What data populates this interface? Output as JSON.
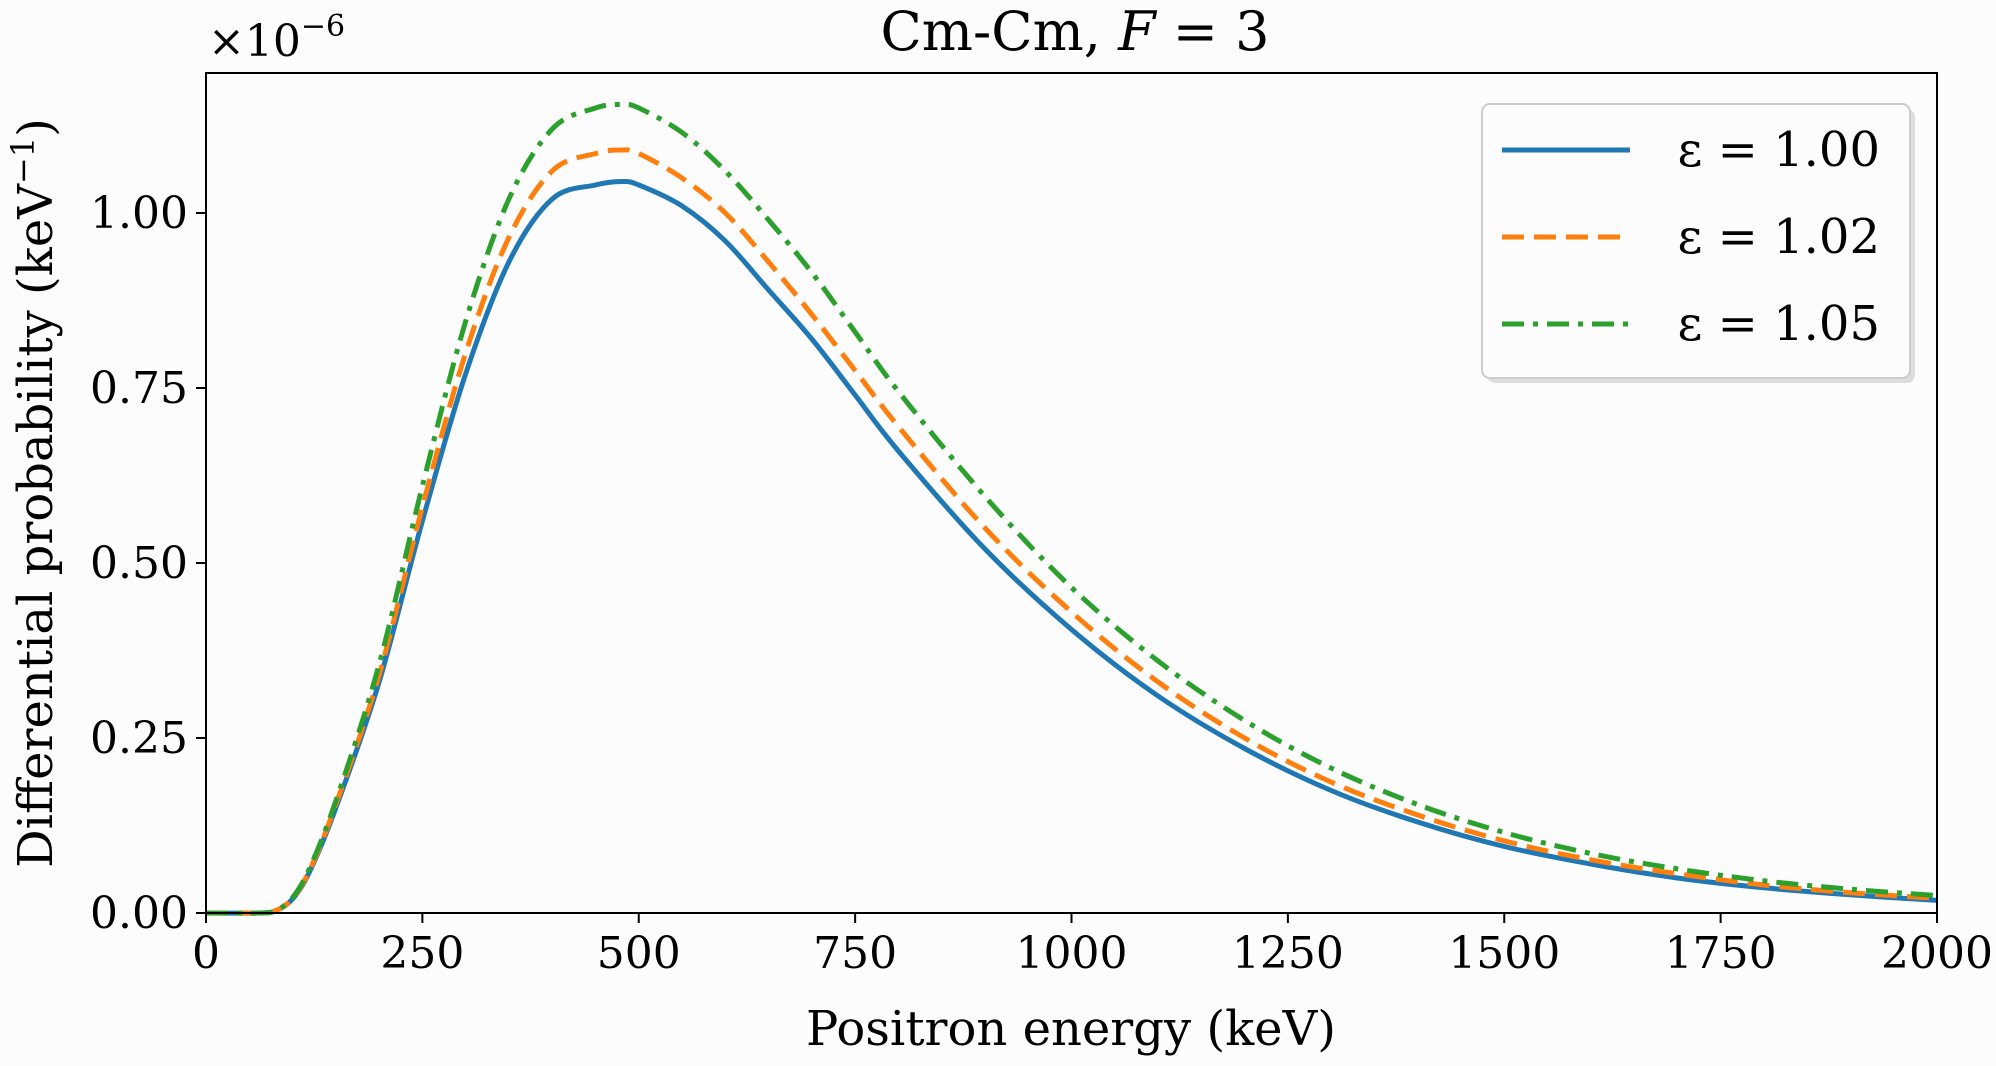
{
  "chart_data": {
    "type": "line",
    "title": "Cm-Cm, F = 3",
    "title_parts": {
      "prefix": "Cm-Cm, ",
      "var": "F",
      "suffix": " = 3"
    },
    "xlabel": "Positron energy (keV)",
    "ylabel": "Differential probability (keV",
    "ylabel_sup": "−1",
    "ylabel_close": ")",
    "y_offset_text": "×10",
    "y_offset_exp": "−6",
    "xlim": [
      0,
      2000
    ],
    "ylim": [
      0,
      1.2
    ],
    "y_scale_factor": 1e-06,
    "xticks": [
      0,
      250,
      500,
      750,
      1000,
      1250,
      1500,
      1750,
      2000
    ],
    "xtick_labels": [
      "0",
      "250",
      "500",
      "750",
      "1000",
      "1250",
      "1500",
      "1750",
      "2000"
    ],
    "yticks": [
      0,
      0.25,
      0.5,
      0.75,
      1.0
    ],
    "ytick_labels": [
      "0.00",
      "0.25",
      "0.50",
      "0.75",
      "1.00"
    ],
    "grid": false,
    "legend_position": "top-right",
    "x": [
      0,
      60,
      80,
      100,
      120,
      150,
      200,
      250,
      300,
      350,
      400,
      450,
      480,
      500,
      550,
      600,
      650,
      700,
      750,
      800,
      900,
      1000,
      1100,
      1200,
      1300,
      1400,
      1500,
      1600,
      1700,
      1800,
      1900,
      2000
    ],
    "series": [
      {
        "name": "ε = 1.00",
        "color": "#1f77b4",
        "style": "solid",
        "values": [
          0,
          0,
          0.003,
          0.02,
          0.06,
          0.15,
          0.33,
          0.56,
          0.77,
          0.93,
          1.02,
          1.04,
          1.045,
          1.04,
          1.01,
          0.96,
          0.89,
          0.82,
          0.74,
          0.66,
          0.52,
          0.405,
          0.31,
          0.235,
          0.175,
          0.13,
          0.095,
          0.07,
          0.05,
          0.036,
          0.026,
          0.018
        ]
      },
      {
        "name": "ε = 1.02",
        "color": "#ff7f0e",
        "style": "dashed",
        "values": [
          0,
          0,
          0.003,
          0.021,
          0.062,
          0.155,
          0.34,
          0.58,
          0.8,
          0.965,
          1.06,
          1.085,
          1.09,
          1.085,
          1.05,
          1.0,
          0.93,
          0.855,
          0.775,
          0.695,
          0.55,
          0.43,
          0.33,
          0.25,
          0.187,
          0.14,
          0.103,
          0.076,
          0.056,
          0.04,
          0.029,
          0.021
        ]
      },
      {
        "name": "ε = 1.05",
        "color": "#2ca02c",
        "style": "dashdot",
        "values": [
          0,
          0,
          0.003,
          0.022,
          0.065,
          0.16,
          0.355,
          0.61,
          0.845,
          1.02,
          1.12,
          1.15,
          1.155,
          1.15,
          1.115,
          1.06,
          0.99,
          0.915,
          0.83,
          0.745,
          0.595,
          0.465,
          0.36,
          0.275,
          0.207,
          0.155,
          0.115,
          0.085,
          0.063,
          0.046,
          0.034,
          0.025
        ]
      }
    ]
  }
}
